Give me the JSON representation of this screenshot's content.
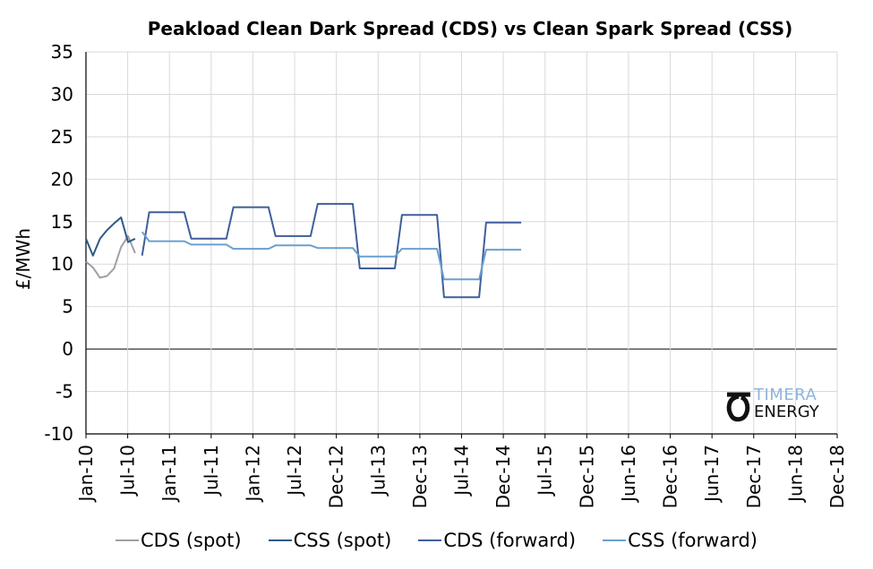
{
  "chart_data": {
    "type": "line",
    "title": "Peakload  Clean Dark Spread (CDS) vs Clean Spark Spread (CSS)",
    "xlabel": "",
    "ylabel": "£/MWh",
    "ylim": [
      -10,
      35
    ],
    "yticks": [
      35,
      30,
      25,
      20,
      15,
      10,
      5,
      0,
      -5,
      -10
    ],
    "xlim": [
      "2010-01",
      "2018-12"
    ],
    "xtick_labels": [
      "Jan-10",
      "Jul-10",
      "Jan-11",
      "Jul-11",
      "Jan-12",
      "Jul-12",
      "Dec-12",
      "Jul-13",
      "Dec-13",
      "Jul-14",
      "Dec-14",
      "Jul-15",
      "Dec-15",
      "Jun-16",
      "Dec-16",
      "Jun-17",
      "Dec-17",
      "Jun-18",
      "Dec-18"
    ],
    "grid": true,
    "legend": "bottom",
    "series": [
      {
        "name": "CDS (spot)",
        "color": "#a19ea6",
        "points": [
          [
            "2010-01",
            10.3
          ],
          [
            "2010-02",
            9.6
          ],
          [
            "2010-03",
            8.4
          ],
          [
            "2010-04",
            8.6
          ],
          [
            "2010-05",
            9.5
          ],
          [
            "2010-06",
            12.0
          ],
          [
            "2010-07",
            13.3
          ],
          [
            "2010-08",
            11.3
          ]
        ]
      },
      {
        "name": "CSS (spot)",
        "color": "#2e5a87",
        "points": [
          [
            "2010-01",
            13.0
          ],
          [
            "2010-02",
            11.0
          ],
          [
            "2010-03",
            13.0
          ],
          [
            "2010-04",
            14.0
          ],
          [
            "2010-05",
            14.8
          ],
          [
            "2010-06",
            15.5
          ],
          [
            "2010-07",
            12.6
          ],
          [
            "2010-08",
            13.0
          ]
        ]
      },
      {
        "name": "CDS (forward)",
        "color": "#3f5f9a",
        "points": [
          [
            "2010-09",
            11.0
          ],
          [
            "2010-10",
            16.1
          ],
          [
            "2011-03",
            16.1
          ],
          [
            "2011-04",
            13.0
          ],
          [
            "2011-09",
            13.0
          ],
          [
            "2011-10",
            16.7
          ],
          [
            "2012-03",
            16.7
          ],
          [
            "2012-04",
            13.3
          ],
          [
            "2012-09",
            13.3
          ],
          [
            "2012-10",
            17.1
          ],
          [
            "2013-03",
            17.1
          ],
          [
            "2013-04",
            9.5
          ],
          [
            "2013-09",
            9.5
          ],
          [
            "2013-10",
            15.8
          ],
          [
            "2014-03",
            15.8
          ],
          [
            "2014-04",
            6.1
          ],
          [
            "2014-09",
            6.1
          ],
          [
            "2014-10",
            14.9
          ],
          [
            "2015-03",
            14.9
          ]
        ]
      },
      {
        "name": "CSS (forward)",
        "color": "#6a9fd0",
        "points": [
          [
            "2010-09",
            13.8
          ],
          [
            "2010-10",
            12.7
          ],
          [
            "2011-03",
            12.7
          ],
          [
            "2011-04",
            12.3
          ],
          [
            "2011-09",
            12.3
          ],
          [
            "2011-10",
            11.8
          ],
          [
            "2012-03",
            11.8
          ],
          [
            "2012-04",
            12.2
          ],
          [
            "2012-09",
            12.2
          ],
          [
            "2012-10",
            11.9
          ],
          [
            "2013-03",
            11.9
          ],
          [
            "2013-04",
            10.9
          ],
          [
            "2013-09",
            10.9
          ],
          [
            "2013-10",
            11.8
          ],
          [
            "2014-03",
            11.8
          ],
          [
            "2014-04",
            8.2
          ],
          [
            "2014-09",
            8.2
          ],
          [
            "2014-10",
            11.7
          ],
          [
            "2015-03",
            11.7
          ]
        ]
      }
    ]
  },
  "logo": {
    "line1": "TIMERA",
    "line2": "ENERGY"
  }
}
